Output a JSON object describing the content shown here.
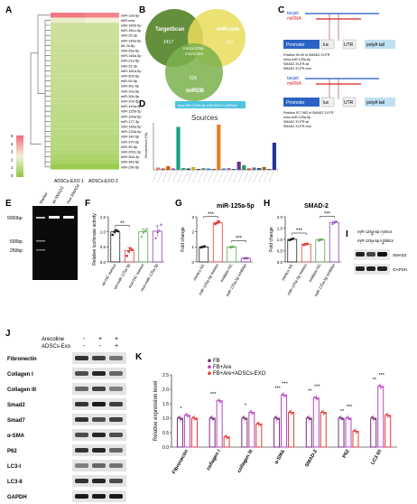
{
  "panel_letters": {
    "A": "A",
    "B": "B",
    "C": "C",
    "D": "D",
    "E": "E",
    "F": "F",
    "G": "G",
    "H": "H",
    "I": "I",
    "J": "J",
    "K": "K"
  },
  "panelA": {
    "rows": [
      "miR-13a-5p",
      "miR-new",
      "miR-146b-5p",
      "miR-181c-5p",
      "miR-25-3p",
      "miR-145a-5p",
      "let-7b-5p",
      "miR-26a-5p",
      "miR-146a-5p",
      "miR-21a-5p",
      "miR-22-3p",
      "miR-181a-5p",
      "miR-30d-5p",
      "miR-93-5p",
      "miR-30c-5p",
      "miR-10a-5p",
      "miR-30b-5p",
      "miR-378-3p",
      "miR-143a-5p",
      "miR-125b-5p",
      "miR-199a-5p",
      "miR-177-3p",
      "miR-148a-5p",
      "miR-125a-5p",
      "miR-140-5p",
      "miR-370-5p",
      "miR-99-5p",
      "miR-200c-3p",
      "miR-30a-3p",
      "miR-34a-5p",
      "miR-29b-5p"
    ],
    "values": [
      [
        0.95,
        0.9
      ],
      [
        0.45,
        0.5
      ],
      [
        0.3,
        0.3
      ],
      [
        0.3,
        0.3
      ],
      [
        0.3,
        0.3
      ],
      [
        0.3,
        0.3
      ],
      [
        0.28,
        0.28
      ],
      [
        0.28,
        0.28
      ],
      [
        0.28,
        0.28
      ],
      [
        0.28,
        0.28
      ],
      [
        0.27,
        0.27
      ],
      [
        0.27,
        0.27
      ],
      [
        0.27,
        0.27
      ],
      [
        0.26,
        0.26
      ],
      [
        0.26,
        0.26
      ],
      [
        0.26,
        0.26
      ],
      [
        0.25,
        0.25
      ],
      [
        0.25,
        0.25
      ],
      [
        0.24,
        0.24
      ],
      [
        0.24,
        0.24
      ],
      [
        0.23,
        0.23
      ],
      [
        0.23,
        0.23
      ],
      [
        0.22,
        0.22
      ],
      [
        0.22,
        0.22
      ],
      [
        0.21,
        0.21
      ],
      [
        0.2,
        0.2
      ],
      [
        0.2,
        0.2
      ],
      [
        0.18,
        0.18
      ],
      [
        0.15,
        0.15
      ],
      [
        0.12,
        0.12
      ],
      [
        0.05,
        0.05
      ]
    ],
    "columns": [
      "ADSCs-EXO 1",
      "ADSCs-EXO 2"
    ],
    "scale_ticks": [
      "5",
      "4",
      "3",
      "2",
      "1",
      "0"
    ],
    "colors": {
      "high": "#f36a7a",
      "mid": "#f4f1d8",
      "low": "#8fc73e"
    }
  },
  "panelB": {
    "sets": [
      "TargetScan",
      "miRcode",
      "miRDB"
    ],
    "counts": {
      "targetscan_only": "1417",
      "mircode_only": "127",
      "mirdb_only": "636"
    },
    "center": "micro-125a\nmicro-34a",
    "colors": {
      "targetscan": "#6b8f3a",
      "mircode": "#e8d95a",
      "mirdb": "#7aa84a"
    }
  },
  "panelC": {
    "top": {
      "target": "target",
      "mirna": "miRNA",
      "s5": "5'",
      "s3": "3'",
      "promoter": "Promoter",
      "luc": "luc",
      "utr": "UTR",
      "polya": "polyA tail"
    },
    "seqs_top": [
      "Position 93-99 of SMAD2 3'UTR",
      "mmu-miR-125a-5p",
      "SMAD2 3'UTR-wt",
      "SMAD2 3'UTR-mut"
    ],
    "bottom": {
      "target": "target",
      "mirna": "miRNA",
      "s5": "5'",
      "s3": "3'",
      "promoter": "Promoter",
      "luc": "luc",
      "utr": "UTR",
      "polya": "polyA tail"
    },
    "seqs_bottom": [
      "Position 977-983 of SMAD2 3'UTR",
      "mmu-miR-125a-5p",
      "SMAD2 3'UTR-wt",
      "SMAD2 3'UTR-mut"
    ]
  },
  "panelD": {
    "chart_data": {
      "type": "bar",
      "title": "Sources",
      "legend": "hsa-miR-125a-5p (SMAD2/3 miRNA)",
      "ylabel": "Occurrence (%)",
      "ylim": [
        0,
        100
      ],
      "values": [
        5,
        3,
        8,
        3,
        95,
        4,
        3,
        6,
        2,
        4,
        3,
        2,
        100,
        3,
        4,
        2,
        18,
        10,
        3,
        5,
        4,
        6,
        2,
        60
      ],
      "colors": [
        "#e07b6b",
        "#c0392b",
        "#d35400",
        "#8e44ad",
        "#16a085",
        "#27ae60",
        "#2c3e50",
        "#d4ac0d",
        "#34495e",
        "#7f8c8d",
        "#2980b9",
        "#c0392b",
        "#e67e22",
        "#2e86c1",
        "#a569bd",
        "#117a65",
        "#6c3483",
        "#239b56",
        "#b03a2e",
        "#5d6d7e",
        "#1f618d",
        "#9c640c",
        "#566573",
        "#283593"
      ]
    }
  },
  "panelE": {
    "lanes": [
      "Marker",
      "wt-SMAD2",
      "mut-SMAD2"
    ],
    "markers": [
      "5000bp",
      "500bp",
      "250bp"
    ]
  },
  "panelF": {
    "chart_data": {
      "type": "bar",
      "categories": [
        "wt+NC mimics",
        "wt+miR-125a-5p",
        "mut+NC mimics",
        "mut+miR-125a-5p"
      ],
      "values": [
        1.0,
        0.38,
        1.0,
        1.02
      ],
      "errors": [
        0.08,
        0.1,
        0.1,
        0.18
      ],
      "points": [
        [
          0.9,
          1.0,
          1.05,
          1.02
        ],
        [
          0.2,
          0.35,
          0.45,
          0.4
        ],
        [
          0.85,
          1.0,
          1.05,
          1.1
        ],
        [
          0.8,
          1.0,
          1.05,
          1.25
        ]
      ],
      "colors": [
        "#222222",
        "#e23b3b",
        "#5aa64a",
        "#8e44ad"
      ],
      "ylabel": "Relative luciferase activity",
      "ylim": [
        0,
        1.5
      ],
      "yticks": [
        "0.0",
        "0.5",
        "1.0",
        "1.5"
      ],
      "sig": [
        "**"
      ]
    }
  },
  "panelG": {
    "chart_data": {
      "type": "bar",
      "title": "miR-125a-5p",
      "categories": [
        "mimics NC",
        "miR-125a-5p mimics",
        "inhibitor NC",
        "miR-125a-5p inhibitor"
      ],
      "values": [
        1.0,
        2.6,
        1.0,
        0.25
      ],
      "errors": [
        0.05,
        0.15,
        0.05,
        0.05
      ],
      "colors": [
        "#222222",
        "#e23b3b",
        "#5aa64a",
        "#8e44ad"
      ],
      "ylabel": "Fold change",
      "ylim": [
        0,
        3
      ],
      "yticks": [
        "0",
        "1",
        "2",
        "3"
      ],
      "sig": [
        "***",
        "***"
      ]
    }
  },
  "panelH": {
    "chart_data": {
      "type": "bar",
      "title": "SMAD-2",
      "categories": [
        "mimics NC",
        "miR-125a-5p mimics",
        "inhibitor NC",
        "miR-125a-5p inhibitor"
      ],
      "values": [
        1.0,
        0.78,
        0.98,
        1.75
      ],
      "errors": [
        0.03,
        0.04,
        0.05,
        0.05
      ],
      "colors": [
        "#222222",
        "#e23b3b",
        "#5aa64a",
        "#8e44ad"
      ],
      "ylabel": "Fold change",
      "ylim": [
        0,
        2
      ],
      "yticks": [
        "0.0",
        "0.5",
        "1.0",
        "1.5",
        "2.0"
      ],
      "sig": [
        "***",
        "***"
      ]
    }
  },
  "panelI": {
    "rows": [
      "miR-125a-5p mimics",
      "miR-125a-5p inhibitor"
    ],
    "signs": [
      [
        "-",
        "+",
        "-"
      ],
      [
        "-",
        "-",
        "+"
      ]
    ],
    "bands": [
      "SMAD2",
      "GAPDH"
    ]
  },
  "panelJ": {
    "rows": [
      "Arecoline",
      "ADSCs-Exo"
    ],
    "signs": [
      [
        "-",
        "+",
        "+"
      ],
      [
        "-",
        "-",
        "+"
      ]
    ],
    "bands": [
      "Fibronectin",
      "Collagen I",
      "Collagen III",
      "Smad2",
      "Smad7",
      "α-SMA",
      "P62",
      "LC3-I",
      "LC3-II",
      "GAPDH"
    ]
  },
  "panelK": {
    "chart_data": {
      "type": "bar",
      "categories": [
        "Fibronectin",
        "collagen I",
        "collagen III",
        "α-SMA",
        "SMAD-2",
        "P62",
        "LC3 II/I"
      ],
      "series": [
        {
          "name": "FB",
          "values": [
            1.0,
            1.0,
            1.0,
            1.0,
            1.0,
            1.0,
            1.0
          ]
        },
        {
          "name": "FB+Are",
          "values": [
            1.1,
            1.6,
            1.2,
            1.8,
            1.7,
            1.0,
            2.1
          ]
        },
        {
          "name": "FB+Are+ADSCs-EXO",
          "values": [
            1.0,
            0.35,
            0.8,
            1.2,
            1.2,
            0.55,
            1.1
          ]
        }
      ],
      "colors": [
        "#7a2c7a",
        "#b946c4",
        "#e23b3b"
      ],
      "ylabel": "Relative expression level",
      "ylim": [
        0,
        2.5
      ],
      "yticks": [
        "0.0",
        "0.5",
        "1.0",
        "1.5",
        "2.0",
        "2.5"
      ],
      "sig": [
        "*",
        "***",
        "*",
        "***",
        "***",
        "**",
        "***",
        "**",
        "***",
        "**",
        "***",
        "***"
      ]
    }
  }
}
